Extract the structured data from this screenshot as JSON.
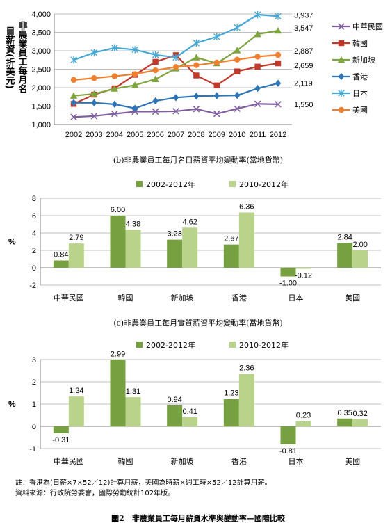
{
  "chart_data": [
    {
      "type": "line",
      "ylabel_line1": "非農業員工每月名",
      "ylabel_line2": "目薪資(折美元)",
      "x": [
        "2002",
        "2003",
        "2004",
        "2005",
        "2006",
        "2007",
        "2008",
        "2009",
        "2010",
        "2011",
        "2012"
      ],
      "ylim": [
        1000,
        4000
      ],
      "yticks": [
        "1,000",
        "1,500",
        "2,000",
        "2,500",
        "3,000",
        "3,500",
        "4,000"
      ],
      "legend_position": "right",
      "series": [
        {
          "name": "中華民國",
          "color": "#7f5ea0",
          "marker": "x",
          "values": [
            1200,
            1230,
            1290,
            1350,
            1350,
            1360,
            1420,
            1290,
            1430,
            1560,
            1550
          ],
          "end_label": "1,550"
        },
        {
          "name": "韓國",
          "color": "#c0392b",
          "marker": "square",
          "values": [
            1560,
            1810,
            1980,
            2350,
            2700,
            2880,
            2330,
            2060,
            2440,
            2570,
            2659
          ],
          "end_label": "2,659"
        },
        {
          "name": "新加坡",
          "color": "#7ea43c",
          "marker": "triangle",
          "values": [
            1780,
            1830,
            1970,
            2070,
            2230,
            2520,
            2820,
            2660,
            3010,
            3450,
            3547
          ],
          "end_label": "3,547"
        },
        {
          "name": "香港",
          "color": "#2e75b6",
          "marker": "diamond",
          "values": [
            1590,
            1590,
            1550,
            1440,
            1640,
            1730,
            1770,
            1780,
            1790,
            1980,
            2119
          ],
          "end_label": "2,119"
        },
        {
          "name": "日本",
          "color": "#45a8d6",
          "marker": "asterisk",
          "values": [
            2750,
            2950,
            3080,
            3030,
            2890,
            2820,
            3210,
            3380,
            3630,
            3980,
            3937
          ],
          "end_label": "3,937"
        },
        {
          "name": "美國",
          "color": "#f08030",
          "marker": "circle",
          "values": [
            2210,
            2260,
            2310,
            2370,
            2470,
            2560,
            2610,
            2680,
            2760,
            2840,
            2887
          ],
          "end_label": "2,887"
        }
      ]
    },
    {
      "type": "bar",
      "title": "(b)非農業員工每月名目薪資平均變動率(當地貨幣)",
      "ylabel": "%",
      "categories": [
        "中華民國",
        "韓國",
        "新加坡",
        "香港",
        "日本",
        "美國"
      ],
      "ylim": [
        -2,
        8
      ],
      "yticks": [
        "-2",
        "0",
        "2",
        "4",
        "6",
        "8"
      ],
      "series": [
        {
          "name": "2002-2012年",
          "color": "#77a141",
          "values": [
            0.84,
            6.0,
            3.23,
            2.67,
            -1.0,
            2.84
          ],
          "labels": [
            "0.84",
            "6.00",
            "3.23",
            "2.67",
            "-1.00",
            "2.84"
          ]
        },
        {
          "name": "2010-2012年",
          "color": "#b9d48a",
          "values": [
            2.79,
            4.38,
            4.62,
            6.36,
            -0.12,
            2.0
          ],
          "labels": [
            "2.79",
            "4.38",
            "4.62",
            "6.36",
            "-0.12",
            "2.00"
          ]
        }
      ]
    },
    {
      "type": "bar",
      "title": "(c)非農業員工每月實質薪資平均變動率(當地貨幣)",
      "ylabel": "%",
      "categories": [
        "中華民國",
        "韓國",
        "新加坡",
        "香港",
        "日本",
        "美國"
      ],
      "ylim": [
        -1,
        3
      ],
      "yticks": [
        "-1",
        "0",
        "1",
        "2",
        "3"
      ],
      "series": [
        {
          "name": "2002-2012年",
          "color": "#77a141",
          "values": [
            -0.31,
            2.99,
            0.94,
            1.23,
            -0.81,
            0.35
          ],
          "labels": [
            "-0.31",
            "2.99",
            "0.94",
            "1.23",
            "-0.81",
            "0.35"
          ]
        },
        {
          "name": "2010-2012年",
          "color": "#b9d48a",
          "values": [
            1.34,
            1.31,
            0.41,
            2.36,
            0.23,
            0.32
          ],
          "labels": [
            "1.34",
            "1.31",
            "0.41",
            "2.36",
            "0.23",
            "0.32"
          ]
        }
      ]
    }
  ],
  "notes": {
    "note_line1": "註：香港為(日薪×7×52／12)計算月薪，美國為時薪×週工時×52／12計算月薪。",
    "note_line2": "資料來源：行政院勞委會，國際勞動統計102年版。",
    "figure_caption": "圖2　非農業員工每月薪資水準與變動率—國際比較"
  },
  "colors": {
    "axis": "#868686",
    "grid": "#bfbfbf"
  }
}
